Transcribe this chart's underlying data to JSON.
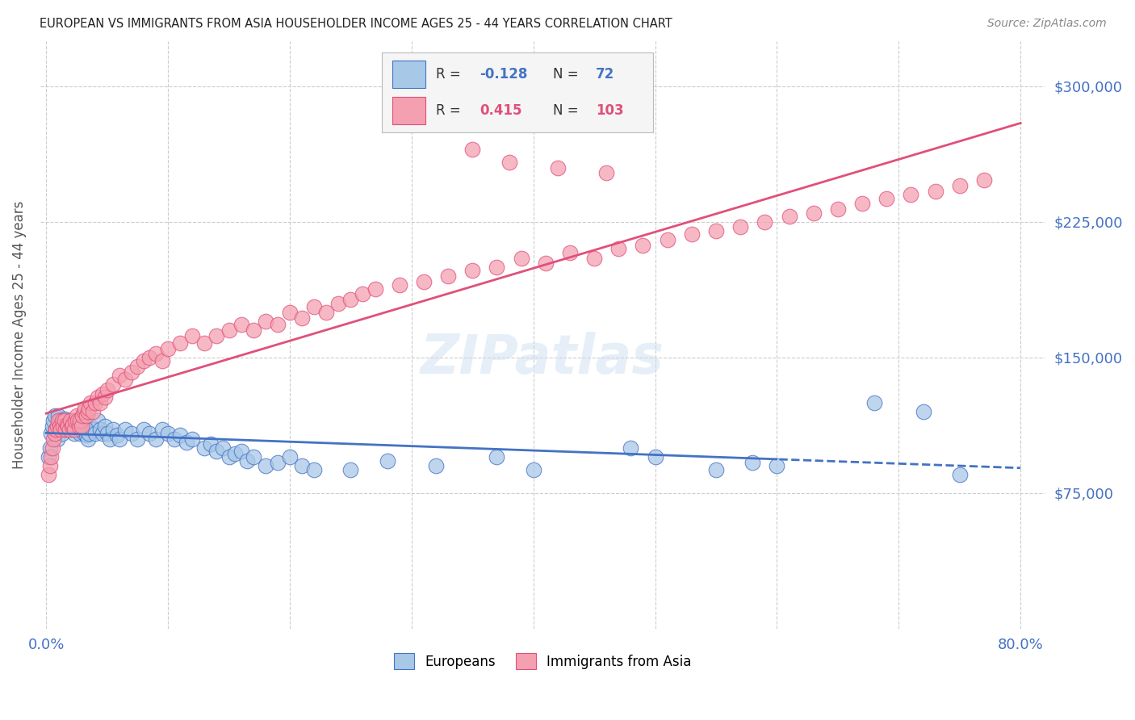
{
  "title": "EUROPEAN VS IMMIGRANTS FROM ASIA HOUSEHOLDER INCOME AGES 25 - 44 YEARS CORRELATION CHART",
  "source": "Source: ZipAtlas.com",
  "ylabel": "Householder Income Ages 25 - 44 years",
  "xlim": [
    -0.005,
    0.82
  ],
  "ylim": [
    0,
    325000
  ],
  "yticks": [
    75000,
    150000,
    225000,
    300000
  ],
  "ytick_labels": [
    "$75,000",
    "$150,000",
    "$225,000",
    "$300,000"
  ],
  "xtick_labels": [
    "0.0%",
    "",
    "",
    "",
    "",
    "",
    "",
    "",
    "80.0%"
  ],
  "blue_color": "#a8c8e8",
  "pink_color": "#f4a0b0",
  "blue_line_color": "#4472c4",
  "pink_line_color": "#e0507a",
  "axis_color": "#4472c4",
  "title_color": "#222222",
  "grid_color": "#cccccc",
  "watermark": "ZIPatlas",
  "blue_x": [
    0.002,
    0.003,
    0.004,
    0.005,
    0.006,
    0.007,
    0.008,
    0.009,
    0.01,
    0.011,
    0.012,
    0.013,
    0.014,
    0.015,
    0.016,
    0.017,
    0.018,
    0.019,
    0.02,
    0.021,
    0.022,
    0.023,
    0.024,
    0.025,
    0.026,
    0.027,
    0.028,
    0.029,
    0.03,
    0.031,
    0.032,
    0.033,
    0.034,
    0.035,
    0.036,
    0.038,
    0.04,
    0.042,
    0.044,
    0.046,
    0.048,
    0.05,
    0.052,
    0.055,
    0.058,
    0.06,
    0.065,
    0.07,
    0.075,
    0.08,
    0.085,
    0.09,
    0.095,
    0.1,
    0.105,
    0.11,
    0.115,
    0.12,
    0.13,
    0.135,
    0.14,
    0.145,
    0.15,
    0.155,
    0.16,
    0.165,
    0.17,
    0.18,
    0.19,
    0.2,
    0.21,
    0.22,
    0.25,
    0.28,
    0.32,
    0.37,
    0.4,
    0.48,
    0.5,
    0.55,
    0.58,
    0.6,
    0.68,
    0.72,
    0.75
  ],
  "blue_y": [
    95000,
    100000,
    108000,
    112000,
    115000,
    118000,
    110000,
    105000,
    118000,
    115000,
    113000,
    108000,
    112000,
    116000,
    110000,
    115000,
    112000,
    110000,
    113000,
    115000,
    110000,
    108000,
    112000,
    115000,
    110000,
    112000,
    108000,
    110000,
    112000,
    108000,
    110000,
    107000,
    105000,
    108000,
    112000,
    110000,
    108000,
    115000,
    110000,
    108000,
    112000,
    108000,
    105000,
    110000,
    107000,
    105000,
    110000,
    108000,
    105000,
    110000,
    108000,
    105000,
    110000,
    108000,
    105000,
    107000,
    103000,
    105000,
    100000,
    102000,
    98000,
    100000,
    95000,
    97000,
    98000,
    93000,
    95000,
    90000,
    92000,
    95000,
    90000,
    88000,
    88000,
    93000,
    90000,
    95000,
    88000,
    100000,
    95000,
    88000,
    92000,
    90000,
    125000,
    120000,
    85000
  ],
  "pink_x": [
    0.002,
    0.003,
    0.004,
    0.005,
    0.006,
    0.007,
    0.008,
    0.009,
    0.01,
    0.011,
    0.012,
    0.013,
    0.014,
    0.015,
    0.016,
    0.017,
    0.018,
    0.019,
    0.02,
    0.021,
    0.022,
    0.023,
    0.024,
    0.025,
    0.026,
    0.027,
    0.028,
    0.029,
    0.03,
    0.031,
    0.032,
    0.033,
    0.034,
    0.035,
    0.036,
    0.038,
    0.04,
    0.042,
    0.044,
    0.046,
    0.048,
    0.05,
    0.055,
    0.06,
    0.065,
    0.07,
    0.075,
    0.08,
    0.085,
    0.09,
    0.095,
    0.1,
    0.11,
    0.12,
    0.13,
    0.14,
    0.15,
    0.16,
    0.17,
    0.18,
    0.19,
    0.2,
    0.21,
    0.22,
    0.23,
    0.24,
    0.25,
    0.26,
    0.27,
    0.29,
    0.31,
    0.33,
    0.35,
    0.37,
    0.39,
    0.41,
    0.43,
    0.45,
    0.47,
    0.49,
    0.51,
    0.53,
    0.55,
    0.57,
    0.59,
    0.61,
    0.63,
    0.65,
    0.67,
    0.69,
    0.71,
    0.73,
    0.75,
    0.77,
    0.35,
    0.38,
    0.42,
    0.46
  ],
  "pink_y": [
    85000,
    90000,
    95000,
    100000,
    105000,
    108000,
    110000,
    112000,
    115000,
    112000,
    110000,
    115000,
    112000,
    115000,
    110000,
    113000,
    112000,
    110000,
    115000,
    112000,
    113000,
    110000,
    115000,
    118000,
    115000,
    112000,
    115000,
    112000,
    118000,
    120000,
    122000,
    118000,
    120000,
    122000,
    125000,
    120000,
    125000,
    128000,
    125000,
    130000,
    128000,
    132000,
    135000,
    140000,
    138000,
    142000,
    145000,
    148000,
    150000,
    152000,
    148000,
    155000,
    158000,
    162000,
    158000,
    162000,
    165000,
    168000,
    165000,
    170000,
    168000,
    175000,
    172000,
    178000,
    175000,
    180000,
    182000,
    185000,
    188000,
    190000,
    192000,
    195000,
    198000,
    200000,
    205000,
    202000,
    208000,
    205000,
    210000,
    212000,
    215000,
    218000,
    220000,
    222000,
    225000,
    228000,
    230000,
    232000,
    235000,
    238000,
    240000,
    242000,
    245000,
    248000,
    265000,
    258000,
    255000,
    252000
  ]
}
